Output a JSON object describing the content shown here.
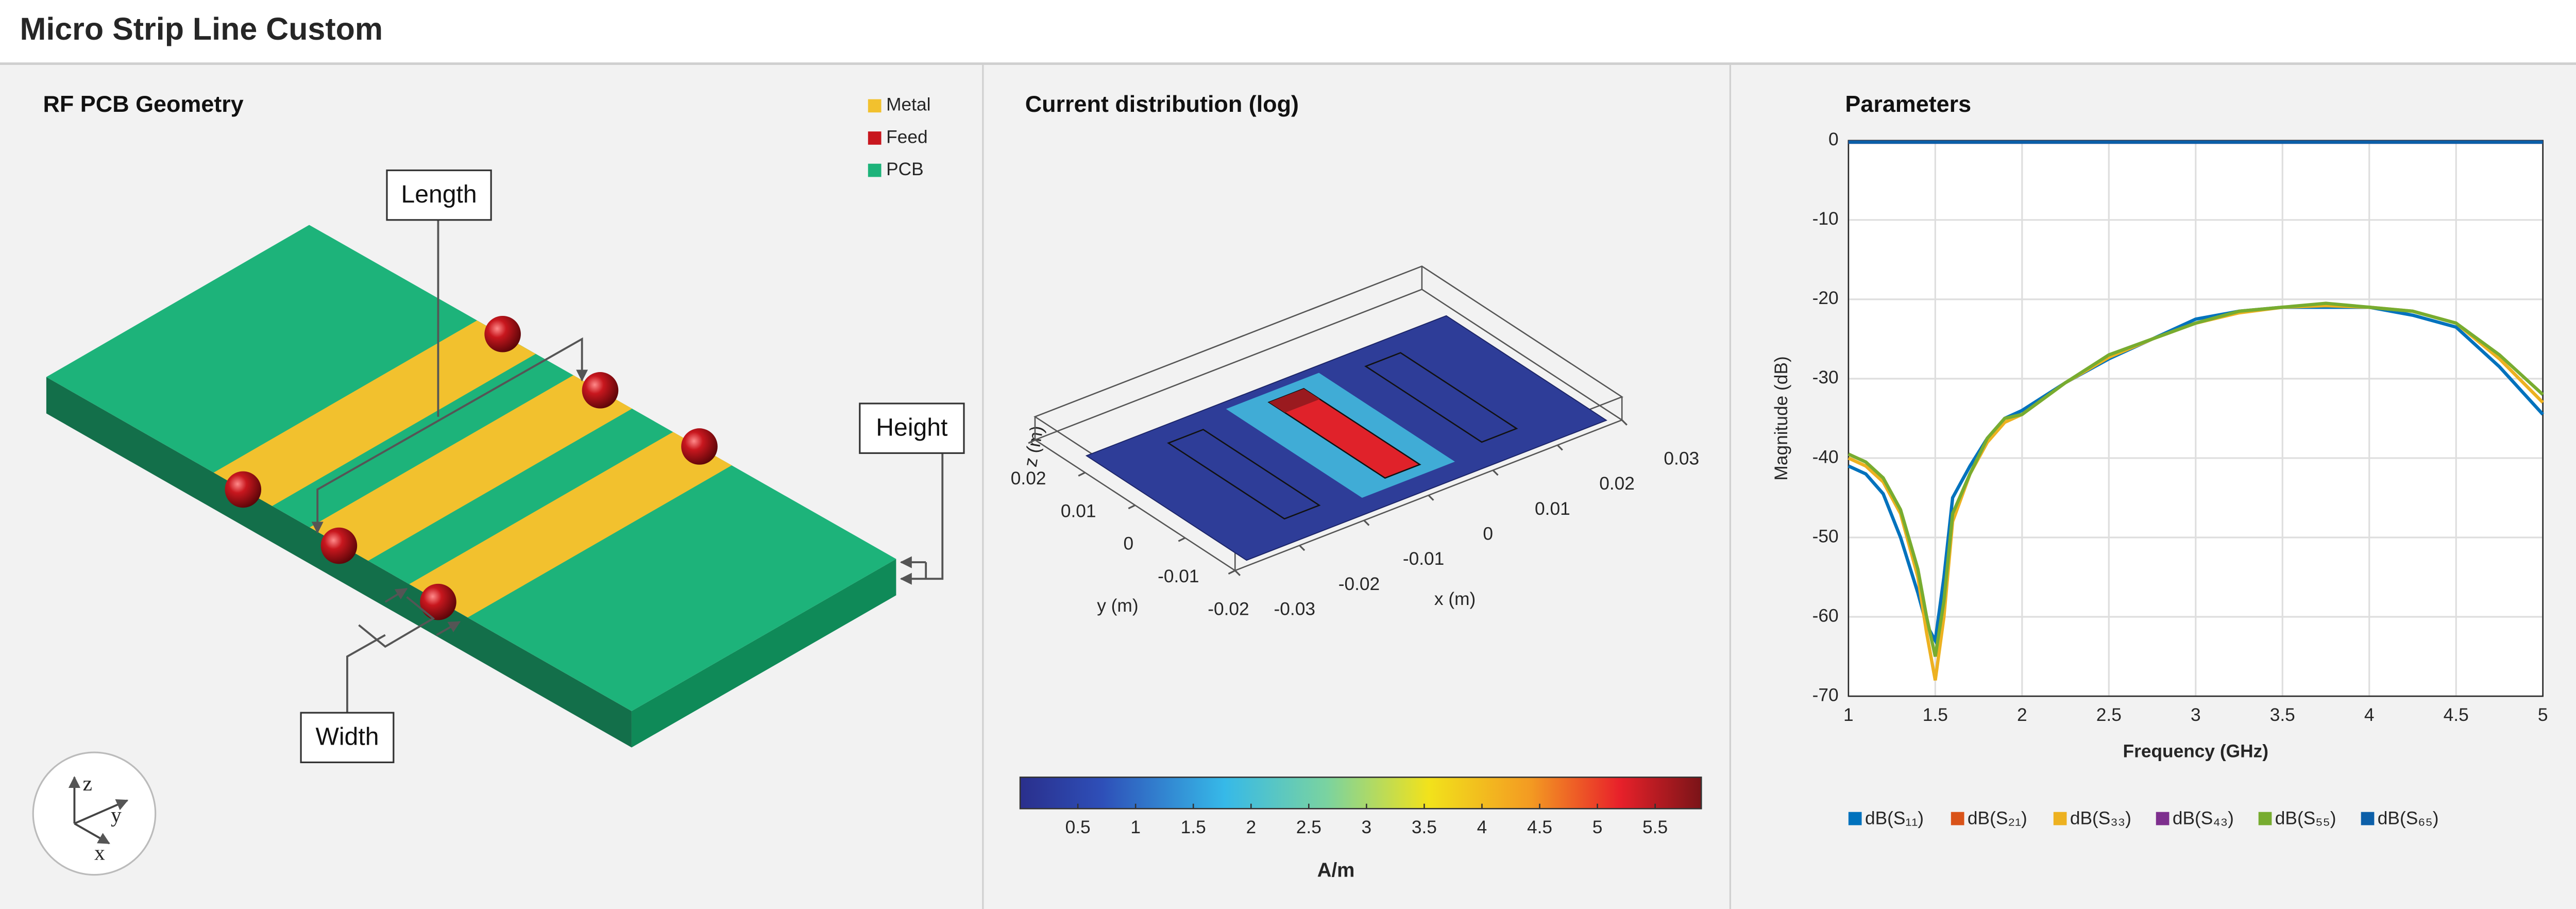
{
  "header": {
    "title": "Micro Strip Line Custom"
  },
  "geometry": {
    "title": "RF PCB Geometry",
    "legend": [
      {
        "name": "Metal",
        "color": "#f2c12e"
      },
      {
        "name": "Feed",
        "color": "#c8171e"
      },
      {
        "name": "PCB",
        "color": "#1db37a"
      }
    ],
    "callouts": {
      "length": "Length",
      "width": "Width",
      "height": "Height"
    },
    "axes": {
      "x": "x",
      "y": "y",
      "z": "z"
    }
  },
  "current": {
    "title": "Current distribution (log)",
    "xlabel": "x (m)",
    "ylabel": "y (m)",
    "zlabel": "z (m)",
    "xlim": [
      -0.03,
      0.03
    ],
    "ylim": [
      -0.02,
      0.02
    ],
    "xticks": [
      -0.03,
      -0.02,
      -0.01,
      0,
      0.01,
      0.02,
      0.03
    ],
    "yticks": [
      -0.02,
      -0.01,
      0,
      0.01,
      0.02
    ],
    "colorbar": {
      "lim": [
        0,
        5.9
      ],
      "ticks": [
        0.5,
        1,
        1.5,
        2,
        2.5,
        3,
        3.5,
        4,
        4.5,
        5,
        5.5
      ],
      "label": "A/m"
    }
  },
  "chart_data": {
    "type": "line",
    "title": "Parameters",
    "xlabel": "Frequency (GHz)",
    "ylabel": "Magnitude (dB)",
    "x": [
      1,
      1.1,
      1.2,
      1.3,
      1.4,
      1.45,
      1.5,
      1.55,
      1.6,
      1.7,
      1.8,
      1.9,
      2,
      2.25,
      2.5,
      2.75,
      3,
      3.25,
      3.5,
      3.75,
      4,
      4.25,
      4.5,
      4.75,
      5
    ],
    "xlim": [
      1,
      5
    ],
    "ylim": [
      -70,
      0
    ],
    "xticks": [
      1,
      1.5,
      2,
      2.5,
      3,
      3.5,
      4,
      4.5,
      5
    ],
    "yticks": [
      -70,
      -60,
      -50,
      -40,
      -30,
      -20,
      -10,
      0
    ],
    "grid": true,
    "series": [
      {
        "name": "dB(S₁₁)",
        "color": "#0072bd",
        "values": [
          -41,
          -42,
          -44.5,
          -50,
          -57,
          -61,
          -63,
          -55,
          -45,
          -41,
          -37.5,
          -35,
          -34,
          -30.5,
          -27.5,
          -25,
          -22.5,
          -21.5,
          -21,
          -21,
          -21,
          -22,
          -23.5,
          -28.5,
          -34.5
        ]
      },
      {
        "name": "dB(S₂₁)",
        "color": "#d95319",
        "values": [
          -0.2,
          -0.2,
          -0.2,
          -0.2,
          -0.2,
          -0.2,
          -0.2,
          -0.2,
          -0.2,
          -0.2,
          -0.2,
          -0.2,
          -0.2,
          -0.2,
          -0.2,
          -0.2,
          -0.2,
          -0.2,
          -0.2,
          -0.2,
          -0.2,
          -0.2,
          -0.2,
          -0.2,
          -0.2
        ]
      },
      {
        "name": "dB(S₃₃)",
        "color": "#edb120",
        "values": [
          -40,
          -41,
          -43,
          -47,
          -55,
          -62,
          -68,
          -60,
          -48,
          -42,
          -38,
          -35.5,
          -34.5,
          -30.5,
          -27.3,
          -25,
          -23,
          -21.7,
          -21,
          -20.8,
          -21,
          -21.5,
          -23,
          -27.5,
          -33
        ]
      },
      {
        "name": "dB(S₄₃)",
        "color": "#7e2f8e",
        "values": [
          -0.2,
          -0.2,
          -0.2,
          -0.2,
          -0.2,
          -0.2,
          -0.2,
          -0.2,
          -0.2,
          -0.2,
          -0.2,
          -0.2,
          -0.2,
          -0.2,
          -0.2,
          -0.2,
          -0.2,
          -0.2,
          -0.2,
          -0.2,
          -0.2,
          -0.2,
          -0.2,
          -0.2,
          -0.2
        ]
      },
      {
        "name": "dB(S₅₅)",
        "color": "#77ac30",
        "values": [
          -39.5,
          -40.5,
          -42.5,
          -46.5,
          -54,
          -60,
          -65,
          -58,
          -47,
          -42,
          -37.5,
          -35,
          -34.5,
          -30.5,
          -27,
          -25,
          -23,
          -21.5,
          -21,
          -20.5,
          -21,
          -21.5,
          -23,
          -27,
          -32
        ]
      },
      {
        "name": "dB(S₆₅)",
        "color": "#0c5fa8",
        "values": [
          -0.2,
          -0.2,
          -0.2,
          -0.2,
          -0.2,
          -0.2,
          -0.2,
          -0.2,
          -0.2,
          -0.2,
          -0.2,
          -0.2,
          -0.2,
          -0.2,
          -0.2,
          -0.2,
          -0.2,
          -0.2,
          -0.2,
          -0.2,
          -0.2,
          -0.2,
          -0.2,
          -0.2,
          -0.2
        ]
      }
    ]
  }
}
